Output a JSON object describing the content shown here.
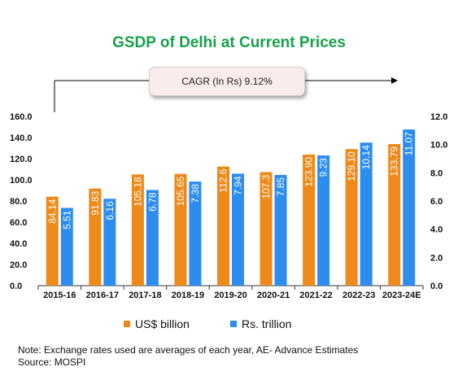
{
  "colors": {
    "usd": "#ee8a19",
    "rs": "#2d8def",
    "title": "#17a24a"
  },
  "cagr_label": "CAGR (In Rs) 9.12%",
  "legend": {
    "usd": "US$ billion",
    "rs": "Rs. trillion"
  },
  "note": {
    "line1": "Note: Exchange rates used are averages of each year, AE- Advance Estimates",
    "line2": "Source: MOSPI"
  },
  "chart_data": {
    "type": "bar",
    "title": "GSDP of Delhi at Current Prices",
    "categories": [
      "2015-16",
      "2016-17",
      "2017-18",
      "2018-19",
      "2019-20",
      "2020-21",
      "2021-22",
      "2022-23",
      "2023-24E"
    ],
    "series": [
      {
        "name": "US$ billion",
        "axis": "left",
        "values": [
          84.14,
          91.83,
          105.18,
          105.65,
          112.6,
          107.3,
          123.9,
          129.1,
          133.79
        ],
        "labels": [
          "84.14",
          "91.83",
          "105.18",
          "105.65",
          "112.6",
          "107.3",
          "123.90",
          "129.10",
          "133.79"
        ]
      },
      {
        "name": "Rs. trillion",
        "axis": "right",
        "values": [
          5.51,
          6.16,
          6.78,
          7.38,
          7.94,
          7.85,
          9.23,
          10.14,
          11.07
        ],
        "labels": [
          "5.51",
          "6.16",
          "6.78",
          "7.38",
          "7.94",
          "7.85",
          "9.23",
          "10.14",
          "11.07"
        ]
      }
    ],
    "y_left": {
      "min": 0,
      "max": 160,
      "ticks": [
        "0.0",
        "20.0",
        "40.0",
        "60.0",
        "80.0",
        "100.0",
        "120.0",
        "140.0",
        "160.0"
      ]
    },
    "y_right": {
      "min": 0,
      "max": 12,
      "ticks": [
        "0.0",
        "2.0",
        "4.0",
        "6.0",
        "8.0",
        "10.0",
        "12.0"
      ]
    },
    "grid": false,
    "legend_position": "bottom"
  }
}
